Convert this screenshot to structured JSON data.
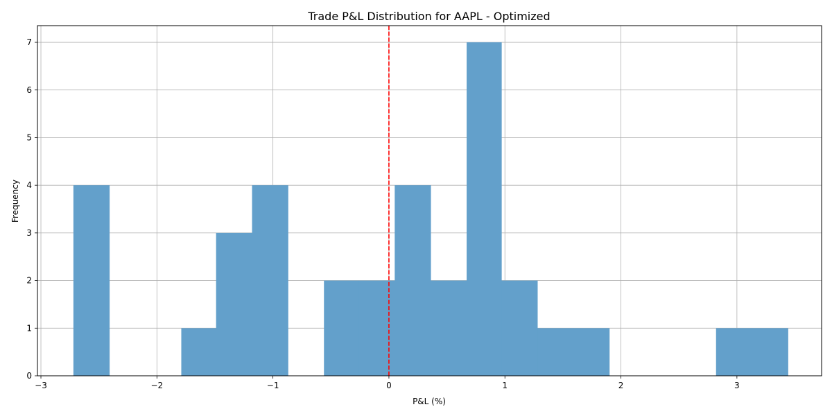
{
  "chart_data": {
    "type": "histogram",
    "title": "Trade P&L Distribution for AAPL - Optimized",
    "xlabel": "P&L (%)",
    "ylabel": "Frequency",
    "xlim": [
      -3.03,
      3.73
    ],
    "ylim": [
      0,
      7.35
    ],
    "x_ticks": [
      -3,
      -2,
      -1,
      0,
      1,
      2,
      3
    ],
    "x_tick_labels": [
      "−3",
      "−2",
      "−1",
      "0",
      "1",
      "2",
      "3"
    ],
    "y_ticks": [
      0,
      1,
      2,
      3,
      4,
      5,
      6,
      7
    ],
    "y_tick_labels": [
      "0",
      "1",
      "2",
      "3",
      "4",
      "5",
      "6",
      "7"
    ],
    "grid": true,
    "bar_color": "#63a0cb",
    "bins": [
      {
        "x0": -2.72,
        "x1": -2.41,
        "count": 4
      },
      {
        "x0": -2.41,
        "x1": -2.1,
        "count": 0
      },
      {
        "x0": -2.1,
        "x1": -1.79,
        "count": 0
      },
      {
        "x0": -1.79,
        "x1": -1.49,
        "count": 1
      },
      {
        "x0": -1.49,
        "x1": -1.18,
        "count": 3
      },
      {
        "x0": -1.18,
        "x1": -0.87,
        "count": 4
      },
      {
        "x0": -0.87,
        "x1": -0.56,
        "count": 0
      },
      {
        "x0": -0.56,
        "x1": -0.26,
        "count": 2
      },
      {
        "x0": -0.26,
        "x1": 0.05,
        "count": 2
      },
      {
        "x0": 0.05,
        "x1": 0.36,
        "count": 4
      },
      {
        "x0": 0.36,
        "x1": 0.67,
        "count": 2
      },
      {
        "x0": 0.67,
        "x1": 0.97,
        "count": 7
      },
      {
        "x0": 0.97,
        "x1": 1.28,
        "count": 2
      },
      {
        "x0": 1.28,
        "x1": 1.59,
        "count": 1
      },
      {
        "x0": 1.59,
        "x1": 1.9,
        "count": 1
      },
      {
        "x0": 1.9,
        "x1": 2.2,
        "count": 0
      },
      {
        "x0": 2.2,
        "x1": 2.51,
        "count": 0
      },
      {
        "x0": 2.51,
        "x1": 2.82,
        "count": 0
      },
      {
        "x0": 2.82,
        "x1": 3.13,
        "count": 1
      },
      {
        "x0": 3.13,
        "x1": 3.44,
        "count": 1
      }
    ],
    "reference_line": {
      "x": 0,
      "color": "#ff0000",
      "style": "dashed"
    }
  }
}
